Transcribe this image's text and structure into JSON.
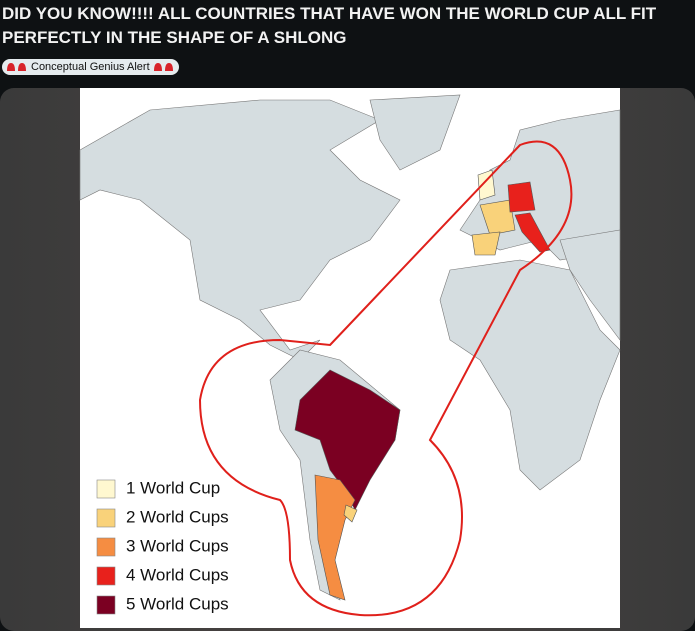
{
  "post": {
    "title": "DID YOU KNOW!!!! ALL COUNTRIES THAT HAVE WON THE WORLD CUP ALL FIT PERFECTLY IN THE SHAPE OF A SHLONG",
    "flair": "Conceptual Genius Alert"
  },
  "map": {
    "legend": [
      {
        "label": "1 World Cup",
        "color": "#fff8d0"
      },
      {
        "label": "2 World Cups",
        "color": "#f9d27a"
      },
      {
        "label": "3 World Cups",
        "color": "#f58d42"
      },
      {
        "label": "4 World Cups",
        "color": "#e8211c"
      },
      {
        "label": "5 World Cups",
        "color": "#7b0022"
      }
    ]
  }
}
